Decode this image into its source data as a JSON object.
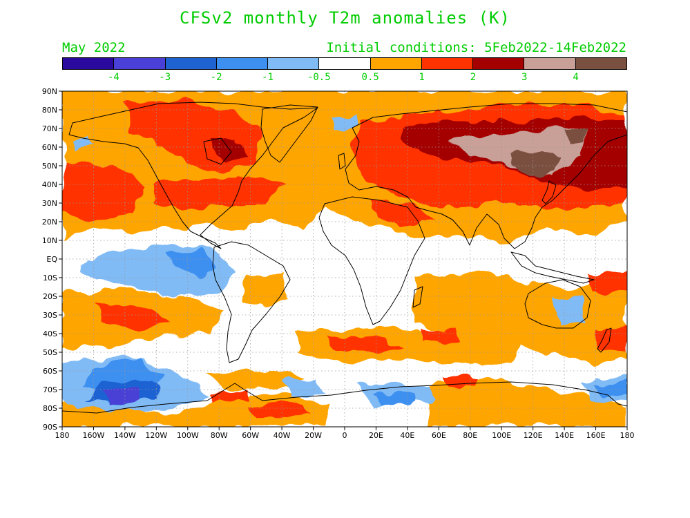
{
  "title": "CFSv2 monthly T2m anomalies (K)",
  "valid_month": "May 2022",
  "initial_conditions": "Initial conditions: 5Feb2022-14Feb2022",
  "colorbar": {
    "colors": [
      "#2a0a9e",
      "#4a3fd6",
      "#1f62d2",
      "#3d8ff0",
      "#80bbf6",
      "#ffffff",
      "#ffa500",
      "#ff3300",
      "#a50000",
      "#c8a097",
      "#7a5040"
    ],
    "labels": [
      "-4",
      "-3",
      "-2",
      "-1",
      "-0.5",
      "0.5",
      "1",
      "2",
      "3",
      "4"
    ]
  },
  "axes": {
    "lat_labels": [
      "90N",
      "80N",
      "70N",
      "60N",
      "50N",
      "40N",
      "30N",
      "20N",
      "10N",
      "EQ",
      "10S",
      "20S",
      "30S",
      "40S",
      "50S",
      "60S",
      "70S",
      "80S",
      "90S"
    ],
    "lon_labels": [
      "180",
      "160W",
      "140W",
      "120W",
      "100W",
      "80W",
      "60W",
      "40W",
      "20W",
      "0",
      "20E",
      "40E",
      "60E",
      "80E",
      "100E",
      "120E",
      "140E",
      "160E",
      "180"
    ]
  }
}
